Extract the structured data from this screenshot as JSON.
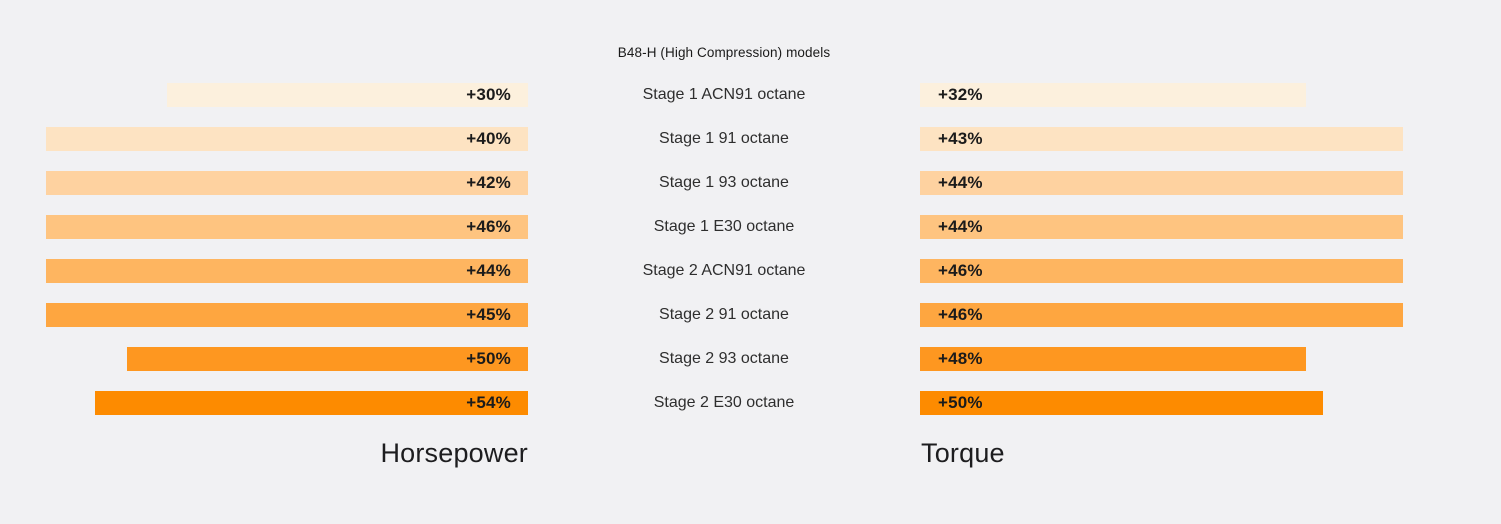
{
  "page": {
    "background_color": "#F1F1F3"
  },
  "chart_data": {
    "type": "bar",
    "orientation": "horizontal-mirrored",
    "title": "B48-H (High Compression) models",
    "grid": false,
    "legend_position": "none",
    "categories": [
      "Stage 1 ACN91 octane",
      "Stage 1 91 octane",
      "Stage 1 93 octane",
      "Stage 1 E30 octane",
      "Stage 2 ACN91 octane",
      "Stage 2 91 octane",
      "Stage 2 93 octane",
      "Stage 2 E30 octane"
    ],
    "series": [
      {
        "name": "Horsepower",
        "side": "left",
        "unit": "%",
        "values": [
          30,
          40,
          42,
          46,
          44,
          45,
          50,
          54
        ],
        "labels": [
          "+30%",
          "+40%",
          "+42%",
          "+46%",
          "+44%",
          "+45%",
          "+50%",
          "+54%"
        ],
        "bar_length_pct": [
          74.9,
          100,
          100,
          100,
          100,
          100,
          83.2,
          89.8
        ]
      },
      {
        "name": "Torque",
        "side": "right",
        "unit": "%",
        "values": [
          32,
          43,
          44,
          44,
          46,
          46,
          48,
          50
        ],
        "labels": [
          "+32%",
          "+43%",
          "+44%",
          "+44%",
          "+46%",
          "+46%",
          "+48%",
          "+50%"
        ],
        "bar_length_pct": [
          80.0,
          100,
          100,
          100,
          100,
          100,
          80.0,
          83.5
        ]
      }
    ],
    "row_colors": [
      "#FCF0DD",
      "#FDE3C2",
      "#FED2A0",
      "#FEC480",
      "#FEB560",
      "#FEA640",
      "#FE9720",
      "#FD8B00"
    ],
    "value_label_color": "#1B1B1B",
    "category_label_color": "#2E2E2E",
    "axis_titles": {
      "left": "Horsepower",
      "right": "Torque"
    }
  }
}
